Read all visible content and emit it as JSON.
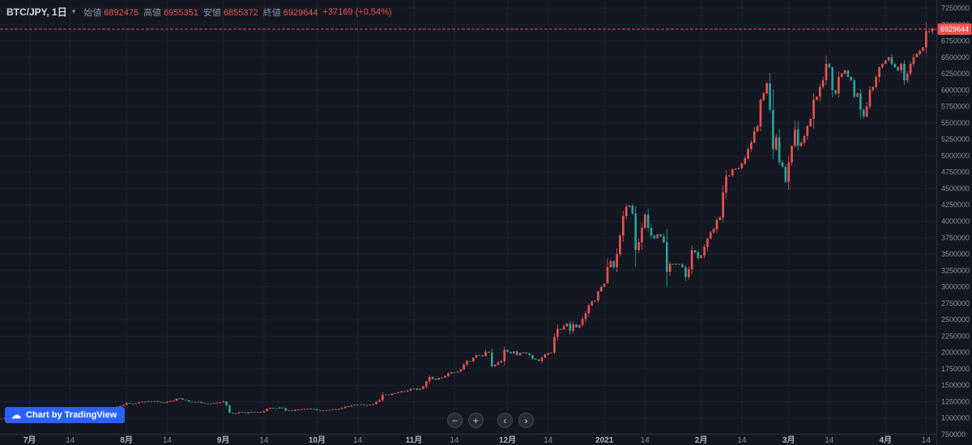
{
  "symbol": {
    "title": "BTC/JPY, 1日",
    "name": "BTC/JPY",
    "interval": "1日"
  },
  "icons": {
    "dropdown_caret": "▾"
  },
  "legend": {
    "open_label": "始値",
    "open": "6892475",
    "high_label": "高値",
    "high": "6955351",
    "low_label": "安値",
    "low": "6855372",
    "close_label": "終値",
    "close": "6929644",
    "change": "+37169 (+0.54%)"
  },
  "toolbar": {
    "zoom_out": "−",
    "zoom_in": "+",
    "scroll_left": "‹",
    "scroll_right": "›"
  },
  "logo": {
    "icon": "☁",
    "text": "Chart by TradingView"
  },
  "colors": {
    "background": "#131722",
    "grid": "#1e222d",
    "up": "#ef5350",
    "down": "#26a69a",
    "axis_text": "#8a8f9b",
    "axis_text_major": "#b2b5be",
    "separator": "#2a2e39",
    "price_line": "#ef5350",
    "badge_text": "#ffffff",
    "accent_blue": "#2962ff"
  },
  "price_axis": {
    "min": 750000,
    "max": 7250000,
    "step": 250000,
    "last_price": 6929644,
    "last_price_label": "6929644",
    "ticks": [
      7250000,
      7000000,
      6750000,
      6500000,
      6250000,
      6000000,
      5750000,
      5500000,
      5250000,
      5000000,
      4750000,
      4500000,
      4250000,
      4000000,
      3750000,
      3500000,
      3250000,
      3000000,
      2750000,
      2500000,
      2250000,
      2000000,
      1750000,
      1500000,
      1250000,
      1000000,
      750000
    ]
  },
  "time_axis": {
    "ticks": [
      {
        "i": 9,
        "t": "7月",
        "b": 1
      },
      {
        "i": 22,
        "t": "14",
        "b": 0
      },
      {
        "i": 40,
        "t": "8月",
        "b": 1
      },
      {
        "i": 53,
        "t": "14",
        "b": 0
      },
      {
        "i": 71,
        "t": "9月",
        "b": 1
      },
      {
        "i": 84,
        "t": "14",
        "b": 0
      },
      {
        "i": 101,
        "t": "10月",
        "b": 1
      },
      {
        "i": 114,
        "t": "14",
        "b": 0
      },
      {
        "i": 132,
        "t": "11月",
        "b": 1
      },
      {
        "i": 145,
        "t": "14",
        "b": 0
      },
      {
        "i": 162,
        "t": "12月",
        "b": 1
      },
      {
        "i": 175,
        "t": "14",
        "b": 0
      },
      {
        "i": 193,
        "t": "2021",
        "b": 1
      },
      {
        "i": 206,
        "t": "14",
        "b": 0
      },
      {
        "i": 224,
        "t": "2月",
        "b": 1
      },
      {
        "i": 237,
        "t": "14",
        "b": 0
      },
      {
        "i": 252,
        "t": "3月",
        "b": 1
      },
      {
        "i": 265,
        "t": "14",
        "b": 0
      },
      {
        "i": 283,
        "t": "4月",
        "b": 1
      },
      {
        "i": 296,
        "t": "14",
        "b": 0
      }
    ]
  },
  "chart_data": {
    "type": "candlestick",
    "title": "BTC/JPY 1日",
    "unit": "JPY (values stored in thousands of yen)",
    "ylim": [
      750000,
      7250000
    ],
    "grid": true,
    "up_color_convention": "red = up (Japanese convention), teal = down",
    "first_open_thousand_jpy": 985,
    "closes_thousand_jpy": [
      990,
      1000,
      995,
      985,
      975,
      970,
      975,
      980,
      978,
      980,
      975,
      972,
      975,
      978,
      990,
      988,
      985,
      990,
      988,
      985,
      982,
      985,
      980,
      978,
      975,
      972,
      975,
      978,
      980,
      985,
      995,
      1010,
      1015,
      1020,
      1040,
      1090,
      1140,
      1170,
      1185,
      1200,
      1230,
      1220,
      1215,
      1225,
      1240,
      1250,
      1245,
      1255,
      1250,
      1260,
      1245,
      1240,
      1235,
      1250,
      1260,
      1265,
      1295,
      1300,
      1280,
      1270,
      1250,
      1240,
      1245,
      1250,
      1230,
      1225,
      1220,
      1225,
      1230,
      1235,
      1240,
      1255,
      1195,
      1080,
      1070,
      1075,
      1090,
      1085,
      1075,
      1090,
      1095,
      1090,
      1095,
      1085,
      1105,
      1140,
      1155,
      1150,
      1145,
      1160,
      1155,
      1115,
      1120,
      1110,
      1125,
      1130,
      1135,
      1140,
      1145,
      1140,
      1135,
      1120,
      1110,
      1115,
      1120,
      1125,
      1135,
      1130,
      1140,
      1155,
      1175,
      1180,
      1195,
      1205,
      1200,
      1210,
      1200,
      1195,
      1205,
      1215,
      1250,
      1275,
      1355,
      1360,
      1350,
      1370,
      1380,
      1395,
      1410,
      1405,
      1420,
      1445,
      1450,
      1430,
      1445,
      1480,
      1560,
      1625,
      1600,
      1585,
      1610,
      1620,
      1640,
      1680,
      1700,
      1695,
      1710,
      1740,
      1815,
      1870,
      1865,
      1920,
      1960,
      1955,
      1940,
      2010,
      2000,
      1790,
      1815,
      1850,
      1870,
      2040,
      2010,
      1985,
      2015,
      1960,
      1990,
      2000,
      1985,
      1960,
      1905,
      1890,
      1870,
      1920,
      1970,
      1990,
      2000,
      2240,
      2360,
      2350,
      2400,
      2440,
      2330,
      2430,
      2380,
      2420,
      2510,
      2600,
      2720,
      2780,
      2790,
      2930,
      3000,
      3050,
      3300,
      3390,
      3300,
      3500,
      3780,
      4080,
      4220,
      4240,
      4120,
      3560,
      3680,
      3900,
      4100,
      3900,
      3780,
      3740,
      3800,
      3770,
      3680,
      3230,
      3350,
      3340,
      3350,
      3340,
      3300,
      3150,
      3270,
      3560,
      3530,
      3440,
      3480,
      3610,
      3740,
      3830,
      3880,
      4020,
      4060,
      4440,
      4690,
      4700,
      4790,
      4800,
      4810,
      4880,
      4960,
      5100,
      5200,
      5370,
      5450,
      5850,
      5950,
      6100,
      5700,
      5100,
      5280,
      4900,
      4830,
      4600,
      4900,
      5150,
      5400,
      5150,
      5200,
      5300,
      5450,
      5560,
      5850,
      5900,
      6050,
      6150,
      6400,
      6350,
      6000,
      5950,
      6200,
      6250,
      6300,
      6200,
      6150,
      5900,
      5950,
      5700,
      5600,
      5750,
      6000,
      6050,
      6200,
      6350,
      6400,
      6450,
      6500,
      6400,
      6350,
      6300,
      6400,
      6150,
      6250,
      6400,
      6500,
      6550,
      6600,
      6650,
      6900,
      6892.475,
      6929.644
    ],
    "last_candle": {
      "open": 6892475,
      "high": 6955351,
      "low": 6855372,
      "close": 6929644
    }
  }
}
